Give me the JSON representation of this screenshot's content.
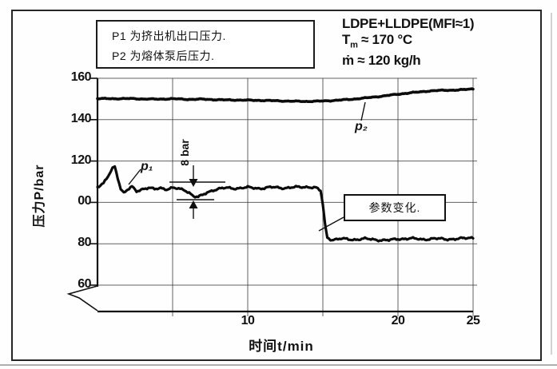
{
  "figure": {
    "legend_box": {
      "lines": [
        "P1 为挤出机出口压力.",
        "P2 为熔体泵后压力."
      ]
    },
    "conditions": {
      "material": "LDPE+LLDPE(MFI≈1)",
      "temp_symbol": "T",
      "temp_sub": "m",
      "temp_rest": " ≈ 170 °C",
      "throughput": "ṁ ≈ 120  kg/h"
    }
  },
  "chart_data": {
    "type": "line",
    "title": "",
    "xlabel": "时间t/min",
    "ylabel": "压力P/bar",
    "xlim": [
      0,
      25
    ],
    "ylim": [
      60,
      160
    ],
    "y_axis_break_below": 60,
    "grid": true,
    "legend_position": "top-left-box",
    "x_ticks": [
      {
        "value": 5,
        "label": ""
      },
      {
        "value": 10,
        "label": "10"
      },
      {
        "value": 15,
        "label": ""
      },
      {
        "value": 20,
        "label": "20"
      },
      {
        "value": 25,
        "label": "25"
      }
    ],
    "y_ticks": [
      {
        "value": 160,
        "label": "160"
      },
      {
        "value": 140,
        "label": "140"
      },
      {
        "value": 120,
        "label": "120"
      },
      {
        "value": 100,
        "label": "00"
      },
      {
        "value": 80,
        "label": "80"
      },
      {
        "value": 60,
        "label": "60"
      }
    ],
    "series": [
      {
        "name": "p₁",
        "points": [
          [
            0,
            107.5
          ],
          [
            0.4,
            109
          ],
          [
            0.7,
            112.5
          ],
          [
            1.0,
            116.5
          ],
          [
            1.15,
            117.5
          ],
          [
            1.35,
            112
          ],
          [
            1.55,
            106.5
          ],
          [
            1.75,
            104.5
          ],
          [
            2.0,
            106
          ],
          [
            2.3,
            107.5
          ],
          [
            2.6,
            105.5
          ],
          [
            3.0,
            106.5
          ],
          [
            3.4,
            107
          ],
          [
            3.8,
            106.3
          ],
          [
            4.2,
            107
          ],
          [
            4.6,
            106.4
          ],
          [
            5.0,
            107
          ],
          [
            5.4,
            106.5
          ],
          [
            5.8,
            106
          ],
          [
            6.1,
            104.8
          ],
          [
            6.4,
            103
          ],
          [
            6.7,
            102.5
          ],
          [
            7.0,
            103.5
          ],
          [
            7.3,
            104.8
          ],
          [
            7.7,
            106
          ],
          [
            8.1,
            106.6
          ],
          [
            8.6,
            107
          ],
          [
            9.2,
            106.8
          ],
          [
            10,
            107.2
          ],
          [
            10.8,
            106.8
          ],
          [
            11.6,
            107.3
          ],
          [
            12.4,
            107
          ],
          [
            13.2,
            107.3
          ],
          [
            14,
            107.5
          ],
          [
            14.5,
            107.2
          ],
          [
            14.85,
            105.5
          ],
          [
            15.0,
            99
          ],
          [
            15.15,
            89
          ],
          [
            15.3,
            83
          ],
          [
            15.6,
            82
          ],
          [
            16.2,
            82.4
          ],
          [
            17,
            82
          ],
          [
            17.8,
            82.4
          ],
          [
            18.6,
            81.9
          ],
          [
            19.4,
            81.7
          ],
          [
            20,
            82.3
          ],
          [
            20.8,
            82.6
          ],
          [
            21.6,
            82.1
          ],
          [
            22.4,
            82.5
          ],
          [
            23.2,
            82.2
          ],
          [
            24,
            82.4
          ],
          [
            24.6,
            82.7
          ],
          [
            25,
            83
          ]
        ]
      },
      {
        "name": "p₂",
        "points": [
          [
            0,
            150.2
          ],
          [
            1,
            150.1
          ],
          [
            2,
            150.2
          ],
          [
            3,
            150
          ],
          [
            4,
            149.9
          ],
          [
            5,
            150.1
          ],
          [
            6,
            149.8
          ],
          [
            7,
            149.9
          ],
          [
            8,
            149.6
          ],
          [
            9,
            149.5
          ],
          [
            10,
            149.4
          ],
          [
            11,
            149.3
          ],
          [
            12,
            149.1
          ],
          [
            13,
            148.9
          ],
          [
            14,
            148.8
          ],
          [
            15,
            149
          ],
          [
            16,
            149.4
          ],
          [
            17,
            149.9
          ],
          [
            18,
            150.6
          ],
          [
            19,
            151.4
          ],
          [
            20,
            152.3
          ],
          [
            21,
            153.1
          ],
          [
            22,
            153.8
          ],
          [
            23,
            154.2
          ],
          [
            24,
            154.3
          ],
          [
            25,
            154.9
          ]
        ]
      }
    ],
    "annotations": [
      {
        "type": "curve-label",
        "text": "p₁",
        "series": "p₁"
      },
      {
        "type": "curve-label",
        "text": "p₂",
        "series": "p₂"
      },
      {
        "type": "fluctuation-span",
        "text": "8 bar",
        "at_t": 6.5,
        "from_bar": 110,
        "to_bar": 102
      },
      {
        "type": "event-callout",
        "text": "参数变化.",
        "at_t": 15
      }
    ]
  }
}
